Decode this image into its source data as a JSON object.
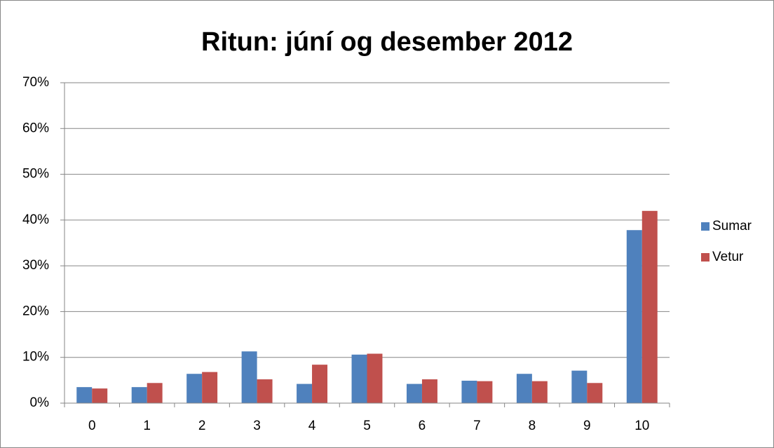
{
  "chart_data": {
    "type": "bar",
    "title": "Ritun: júní og desember 2012",
    "categories": [
      "0",
      "1",
      "2",
      "3",
      "4",
      "5",
      "6",
      "7",
      "8",
      "9",
      "10"
    ],
    "series": [
      {
        "name": "Sumar",
        "color": "#4f81bd",
        "values": [
          3.5,
          3.5,
          6.4,
          11.3,
          4.2,
          10.6,
          4.2,
          4.9,
          6.4,
          7.1,
          37.8
        ]
      },
      {
        "name": "Vetur",
        "color": "#c0504d",
        "values": [
          3.2,
          4.4,
          6.8,
          5.2,
          8.4,
          10.8,
          5.2,
          4.8,
          4.8,
          4.4,
          42.0
        ]
      }
    ],
    "ylim": [
      0,
      70
    ],
    "yticks": [
      {
        "value": 0,
        "label": "0%"
      },
      {
        "value": 10,
        "label": "10%"
      },
      {
        "value": 20,
        "label": "20%"
      },
      {
        "value": 30,
        "label": "30%"
      },
      {
        "value": 40,
        "label": "40%"
      },
      {
        "value": 50,
        "label": "50%"
      },
      {
        "value": 60,
        "label": "60%"
      },
      {
        "value": 70,
        "label": "70%"
      }
    ],
    "grid": true,
    "legend": "right"
  }
}
